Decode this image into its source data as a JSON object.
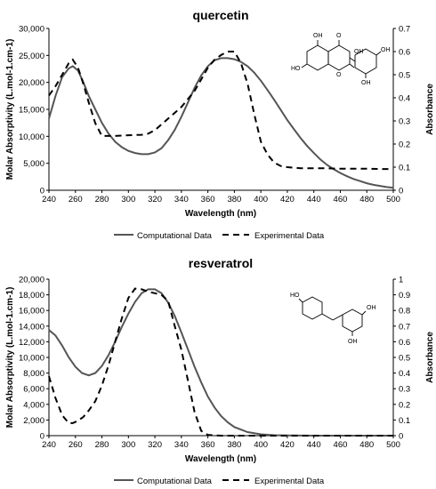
{
  "chart_data": [
    {
      "type": "line",
      "title": "quercetin",
      "xlabel": "Wavelength (nm)",
      "ylabel_left": "Molar Absorptivity (L.mol-1.cm-1)",
      "ylabel_right": "Absorbance",
      "xlim": [
        240,
        500
      ],
      "ylim_left": [
        0,
        30000
      ],
      "ylim_right": [
        0,
        0.7
      ],
      "x_ticks": [
        "240",
        "260",
        "280",
        "300",
        "320",
        "340",
        "360",
        "380",
        "400",
        "420",
        "440",
        "460",
        "480",
        "500"
      ],
      "y_left_ticks": [
        "0",
        "5,000",
        "10,000",
        "15,000",
        "20,000",
        "25,000",
        "30,000"
      ],
      "y_right_ticks": [
        "0",
        "0.1",
        "0.2",
        "0.3",
        "0.4",
        "0.5",
        "0.6",
        "0.7"
      ],
      "legend_position": "bottom",
      "series": [
        {
          "name": "Computational Data",
          "axis": "left",
          "style": "solid",
          "color": "#555555",
          "x": [
            240,
            245,
            250,
            255,
            258,
            262,
            266,
            270,
            275,
            280,
            285,
            290,
            295,
            300,
            305,
            310,
            315,
            320,
            325,
            330,
            335,
            340,
            345,
            350,
            355,
            360,
            365,
            370,
            375,
            380,
            385,
            390,
            395,
            400,
            405,
            410,
            415,
            420,
            425,
            430,
            435,
            440,
            445,
            450,
            455,
            460,
            465,
            470,
            475,
            480,
            485,
            490,
            495,
            500
          ],
          "y": [
            13300,
            17500,
            21000,
            22600,
            23000,
            22200,
            20000,
            17500,
            15000,
            12500,
            10500,
            9000,
            8000,
            7300,
            6900,
            6700,
            6700,
            7000,
            7800,
            9300,
            11200,
            13600,
            16300,
            19000,
            21300,
            23000,
            24100,
            24500,
            24500,
            24300,
            23800,
            23000,
            21800,
            20300,
            18600,
            16800,
            14900,
            13000,
            11300,
            9700,
            8200,
            6900,
            5700,
            4700,
            3900,
            3200,
            2600,
            2100,
            1700,
            1300,
            1000,
            800,
            600,
            450
          ]
        },
        {
          "name": "Experimental Data",
          "axis": "right",
          "style": "dashed",
          "color": "#000000",
          "x": [
            240,
            245,
            250,
            255,
            258,
            262,
            266,
            270,
            275,
            280,
            290,
            300,
            310,
            315,
            320,
            325,
            330,
            340,
            350,
            355,
            360,
            365,
            370,
            375,
            380,
            385,
            390,
            395,
            400,
            405,
            410,
            415,
            420,
            430,
            440,
            450,
            460,
            470,
            480,
            490,
            500
          ],
          "y": [
            0.41,
            0.45,
            0.5,
            0.55,
            0.565,
            0.53,
            0.46,
            0.38,
            0.29,
            0.235,
            0.235,
            0.238,
            0.24,
            0.245,
            0.26,
            0.285,
            0.31,
            0.36,
            0.43,
            0.48,
            0.53,
            0.565,
            0.585,
            0.6,
            0.6,
            0.55,
            0.46,
            0.33,
            0.21,
            0.155,
            0.12,
            0.105,
            0.1,
            0.095,
            0.095,
            0.095,
            0.093,
            0.093,
            0.093,
            0.092,
            0.092
          ]
        }
      ],
      "structure_labels": [
        "OH",
        "O",
        "OH",
        "HO",
        "O",
        "OH",
        "OH"
      ]
    },
    {
      "type": "line",
      "title": "resveratrol",
      "xlabel": "Wavelength (nm)",
      "ylabel_left": "Molar Absorptivity (L.mol-1.cm-1)",
      "ylabel_right": "Absorbance",
      "xlim": [
        240,
        500
      ],
      "ylim_left": [
        0,
        20000
      ],
      "ylim_right": [
        0,
        1
      ],
      "x_ticks": [
        "240",
        "260",
        "280",
        "300",
        "320",
        "340",
        "360",
        "380",
        "400",
        "420",
        "440",
        "460",
        "480",
        "500"
      ],
      "y_left_ticks": [
        "0",
        "2,000",
        "4,000",
        "6,000",
        "8,000",
        "10,000",
        "12,000",
        "14,000",
        "16,000",
        "18,000",
        "20,000"
      ],
      "y_right_ticks": [
        "0",
        "0.1",
        "0.2",
        "0.3",
        "0.4",
        "0.5",
        "0.6",
        "0.7",
        "0.8",
        "0.9",
        "1"
      ],
      "legend_position": "bottom",
      "series": [
        {
          "name": "Computational Data",
          "axis": "left",
          "style": "solid",
          "color": "#555555",
          "x": [
            240,
            245,
            250,
            255,
            260,
            265,
            270,
            275,
            280,
            285,
            290,
            295,
            300,
            305,
            310,
            315,
            320,
            325,
            330,
            335,
            340,
            345,
            350,
            355,
            360,
            365,
            370,
            375,
            380,
            390,
            400,
            410,
            420,
            440,
            460,
            480,
            500
          ],
          "y": [
            13500,
            12800,
            11500,
            10000,
            8800,
            8000,
            7700,
            8000,
            8900,
            10300,
            12000,
            13900,
            15600,
            17100,
            18200,
            18700,
            18700,
            18200,
            17000,
            15300,
            13200,
            11000,
            8800,
            6800,
            5000,
            3600,
            2500,
            1700,
            1100,
            450,
            170,
            60,
            20,
            5,
            0,
            0,
            0
          ]
        },
        {
          "name": "Experimental Data",
          "axis": "right",
          "style": "dashed",
          "color": "#000000",
          "x": [
            240,
            245,
            250,
            255,
            258,
            262,
            266,
            270,
            275,
            280,
            285,
            290,
            295,
            300,
            305,
            310,
            315,
            320,
            325,
            330,
            335,
            340,
            345,
            350,
            355,
            360,
            365,
            370,
            380,
            400,
            420,
            440,
            460,
            480,
            500
          ],
          "y": [
            0.38,
            0.24,
            0.13,
            0.08,
            0.08,
            0.095,
            0.12,
            0.16,
            0.22,
            0.32,
            0.45,
            0.6,
            0.75,
            0.88,
            0.94,
            0.935,
            0.92,
            0.91,
            0.9,
            0.86,
            0.7,
            0.55,
            0.35,
            0.15,
            0.03,
            0.005,
            0.002,
            0,
            0,
            0,
            0,
            0,
            0,
            0,
            0
          ]
        }
      ],
      "structure_labels": [
        "HO",
        "OH",
        "OH"
      ]
    }
  ]
}
